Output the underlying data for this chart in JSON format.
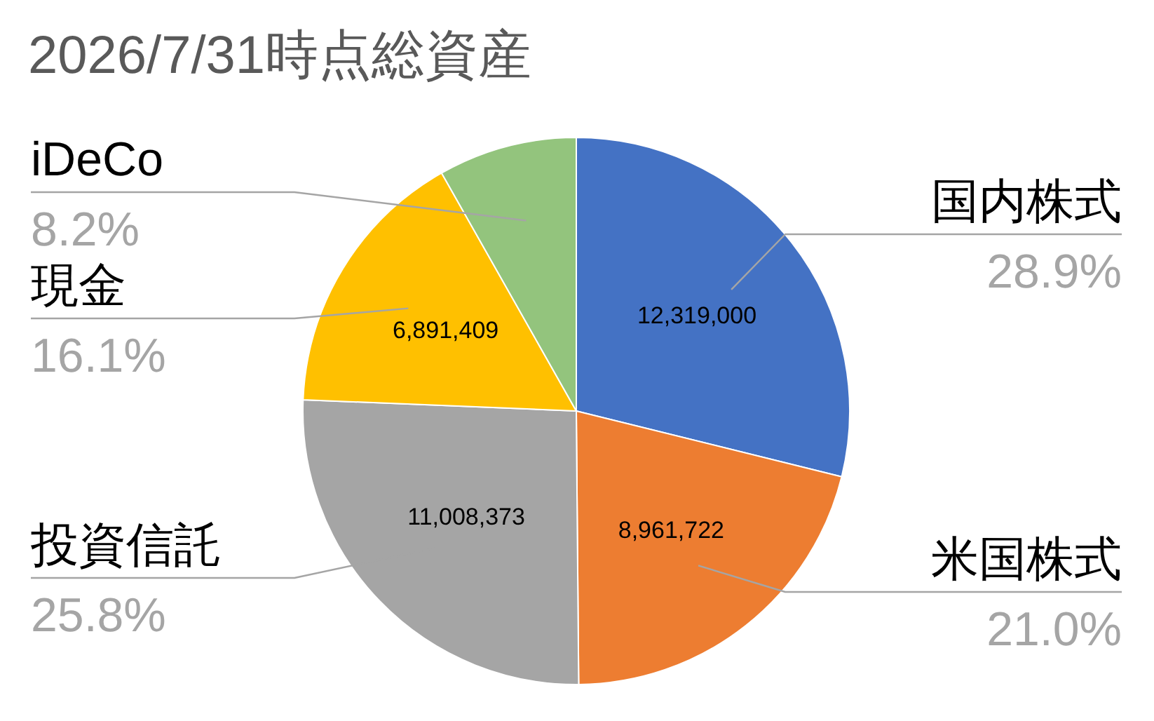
{
  "chart_data": {
    "type": "pie",
    "title": "2026/7/31時点総資産",
    "categories": [
      "国内株式",
      "米国株式",
      "投資信託",
      "現金",
      "iDeCo"
    ],
    "values": [
      12319000,
      8961722,
      11008373,
      6891409,
      3500000
    ],
    "colors": [
      "#4472c4",
      "#ed7d31",
      "#a5a5a5",
      "#ffc000",
      "#93c47d"
    ],
    "value_labels": [
      "12,319,000",
      "8,961,722",
      "11,008,373",
      "6,891,409",
      null
    ],
    "annotations": [
      {
        "text": "28.9%",
        "x": "国内株式"
      },
      {
        "text": "21.0%",
        "x": "米国株式"
      },
      {
        "text": "25.8%",
        "x": "投資信託"
      },
      {
        "text": "16.1%",
        "x": "現金"
      },
      {
        "text": "8.2%",
        "x": "iDeCo"
      }
    ],
    "legend": false
  }
}
